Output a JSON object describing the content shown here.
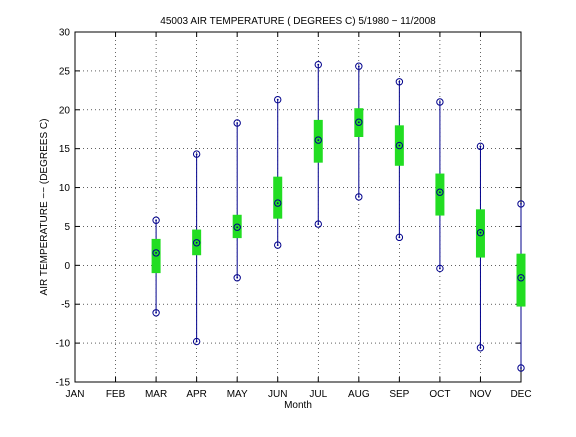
{
  "chart_data": {
    "type": "range",
    "title": "45003  AIR TEMPERATURE ( DEGREES C) 5/1980 − 11/2008",
    "x_label": "Month",
    "y_label": "AIR TEMPERATURE −− (DEGREES C)",
    "categories": [
      "JAN",
      "FEB",
      "MAR",
      "APR",
      "MAY",
      "JUN",
      "JUL",
      "AUG",
      "SEP",
      "OCT",
      "NOV",
      "DEC"
    ],
    "max": [
      null,
      null,
      5.8,
      14.3,
      18.3,
      21.3,
      25.8,
      25.6,
      23.6,
      21.0,
      15.3,
      7.9
    ],
    "mean": [
      null,
      null,
      1.6,
      2.9,
      4.9,
      8.0,
      16.1,
      18.4,
      15.4,
      9.4,
      4.2,
      -1.6
    ],
    "min": [
      null,
      null,
      -6.1,
      -9.8,
      -1.6,
      2.6,
      5.3,
      8.8,
      3.6,
      -0.4,
      -10.6,
      -13.2
    ],
    "box_low": [
      null,
      null,
      -1.0,
      1.3,
      3.5,
      6.0,
      13.2,
      16.5,
      12.8,
      6.4,
      1.0,
      -5.3
    ],
    "box_high": [
      null,
      null,
      3.4,
      4.6,
      6.5,
      11.4,
      18.7,
      20.2,
      18.0,
      11.8,
      7.2,
      1.5
    ],
    "line_color": "#00008b",
    "box_color": "#22dd22",
    "ylim": [
      -15,
      30
    ],
    "yticks": [
      -15,
      -10,
      -5,
      0,
      5,
      10,
      15,
      20,
      25,
      30
    ],
    "grid": true
  }
}
